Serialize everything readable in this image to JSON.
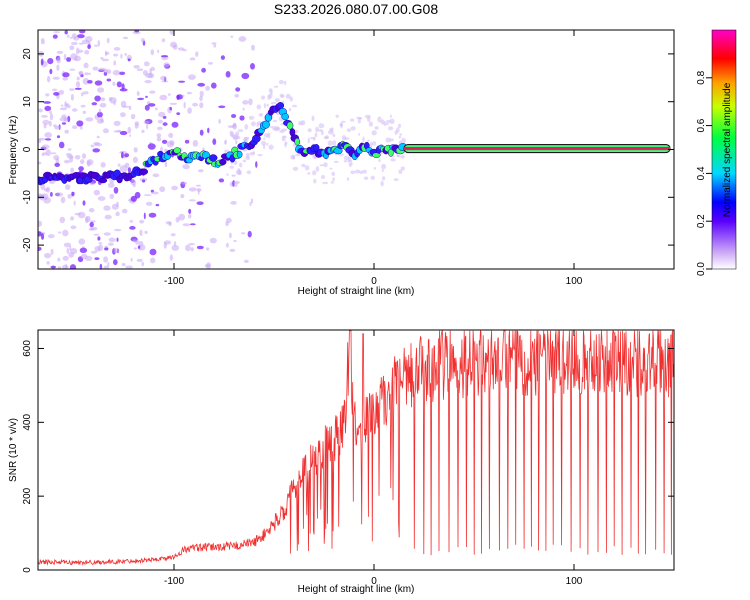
{
  "title": "S233.2026.080.07.00.G08",
  "colors": {
    "snr_line": "#f03030",
    "ridge": "#e02060",
    "scatter": "#8a2be2",
    "axis": "#000000"
  },
  "chart_data": [
    {
      "type": "heatmap",
      "name": "spectrogram",
      "xlabel": "Height of straight line (km)",
      "ylabel": "Frequency (Hz)",
      "xlim": [
        -168,
        150
      ],
      "ylim": [
        -25,
        25
      ],
      "x_ticks": [
        -100,
        0,
        100
      ],
      "y_ticks": [
        -20,
        -10,
        0,
        10,
        20
      ],
      "ridge": {
        "x": [
          -168,
          -155,
          -140,
          -125,
          -115,
          -108,
          -100,
          -92,
          -85,
          -78,
          -70,
          -62,
          -55,
          -50,
          -47,
          -45,
          -42,
          -38,
          -35,
          -30,
          -25,
          -20,
          -15,
          -10,
          -5,
          0,
          5,
          10,
          15,
          20,
          40,
          60,
          80,
          100,
          120,
          148
        ],
        "y": [
          -6,
          -6,
          -6,
          -5.5,
          -4,
          -2,
          0,
          -2,
          -1,
          -3,
          -1,
          1,
          5,
          8,
          9,
          8,
          5,
          1,
          -1,
          0,
          -1,
          0,
          1,
          -1,
          1,
          -1,
          0,
          0,
          0.2,
          0.2,
          0.2,
          0.2,
          0.2,
          0.2,
          0.2,
          0.2
        ]
      },
      "colorbar": {
        "label": "Normalized spectral amplitude",
        "range": [
          0,
          1
        ],
        "ticks": [
          "0.0",
          "0.2",
          "0.4",
          "0.6",
          "0.8"
        ],
        "tick_values": [
          0.0,
          0.2,
          0.4,
          0.6,
          0.8
        ]
      }
    },
    {
      "type": "line",
      "name": "snr",
      "xlabel": "Height of straight line (km)",
      "ylabel": "SNR (10 * v/v)",
      "xlim": [
        -168,
        150
      ],
      "ylim": [
        0,
        650
      ],
      "x_ticks": [
        -100,
        0,
        100
      ],
      "y_ticks": [
        0,
        200,
        400,
        600
      ],
      "series": [
        {
          "name": "SNR",
          "x": [
            -168,
            -150,
            -130,
            -110,
            -100,
            -95,
            -90,
            -80,
            -70,
            -60,
            -55,
            -50,
            -45,
            -40,
            -35,
            -30,
            -25,
            -20,
            -15,
            -12,
            -10,
            -8,
            -5,
            0,
            5,
            10,
            15,
            20,
            25,
            30,
            40,
            50,
            60,
            80,
            100,
            120,
            150
          ],
          "values": [
            22,
            20,
            22,
            28,
            35,
            55,
            60,
            62,
            65,
            75,
            95,
            125,
            160,
            220,
            270,
            300,
            330,
            355,
            390,
            640,
            400,
            380,
            400,
            420,
            460,
            490,
            510,
            530,
            545,
            555,
            565,
            570,
            575,
            572,
            575,
            570,
            565
          ]
        }
      ],
      "dropouts_from_x": 20
    }
  ]
}
